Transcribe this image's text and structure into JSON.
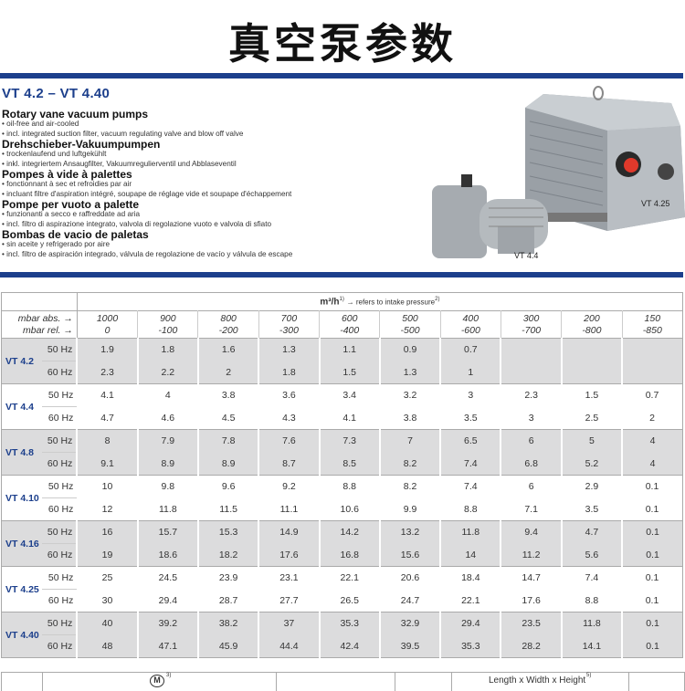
{
  "page_title": "真空泵参数",
  "heading": "VT 4.2 – VT 4.40",
  "descriptions": [
    {
      "title": "Rotary vane vacuum pumps",
      "lines": [
        "• oil-free and air-cooled",
        "• incl. integrated suction filter, vacuum regulating valve and blow off valve"
      ]
    },
    {
      "title": "Drehschieber-Vakuumpumpen",
      "lines": [
        "• trockenlaufend und luftgekühlt",
        "• inkl. integriertem Ansaugfilter, Vakuumregulierventil und Abblaseventil"
      ]
    },
    {
      "title": "Pompes à vide à palettes",
      "lines": [
        "• fonctionnant à sec et refroidies par air",
        "• incluant filtre d'aspiration intégré, soupape de réglage vide et soupape d'échappement"
      ]
    },
    {
      "title": "Pompe per vuoto a palette",
      "lines": [
        "• funzionanti a secco e raffreddate ad aria",
        "• incl. filtro di aspirazione integrato, valvola di regolazione vuoto e valvola di sfiato"
      ]
    },
    {
      "title": "Bombas de vacio de paletas",
      "lines": [
        "• sin aceite y refrigerado por aire",
        "• incl. filtro de aspiración integrado, válvula de regolazione de vacío y válvula de escape"
      ]
    }
  ],
  "photo_captions": {
    "large": "VT 4.25",
    "small": "VT 4.4"
  },
  "table": {
    "unit": "m³/h",
    "unit_note": "1)",
    "refers": "→ refers to intake pressure",
    "refers_note": "2)",
    "abs_label": "mbar abs. →",
    "rel_label": "mbar rel. →",
    "abs": [
      "1000",
      "900",
      "800",
      "700",
      "600",
      "500",
      "400",
      "300",
      "200",
      "150"
    ],
    "rel": [
      "0",
      "-100",
      "-200",
      "-300",
      "-400",
      "-500",
      "-600",
      "-700",
      "-800",
      "-850"
    ],
    "rows": [
      {
        "model": "VT 4.2",
        "hz50": "50 Hz",
        "hz60": "60 Hz",
        "v50": [
          "1.9",
          "1.8",
          "1.6",
          "1.3",
          "1.1",
          "0.9",
          "0.7",
          "",
          "",
          ""
        ],
        "v60": [
          "2.3",
          "2.2",
          "2",
          "1.8",
          "1.5",
          "1.3",
          "1",
          "",
          "",
          ""
        ]
      },
      {
        "model": "VT 4.4",
        "hz50": "50 Hz",
        "hz60": "60 Hz",
        "v50": [
          "4.1",
          "4",
          "3.8",
          "3.6",
          "3.4",
          "3.2",
          "3",
          "2.3",
          "1.5",
          "0.7"
        ],
        "v60": [
          "4.7",
          "4.6",
          "4.5",
          "4.3",
          "4.1",
          "3.8",
          "3.5",
          "3",
          "2.5",
          "2"
        ]
      },
      {
        "model": "VT 4.8",
        "hz50": "50 Hz",
        "hz60": "60 Hz",
        "v50": [
          "8",
          "7.9",
          "7.8",
          "7.6",
          "7.3",
          "7",
          "6.5",
          "6",
          "5",
          "4"
        ],
        "v60": [
          "9.1",
          "8.9",
          "8.9",
          "8.7",
          "8.5",
          "8.2",
          "7.4",
          "6.8",
          "5.2",
          "4"
        ]
      },
      {
        "model": "VT 4.10",
        "hz50": "50 Hz",
        "hz60": "60 Hz",
        "v50": [
          "10",
          "9.8",
          "9.6",
          "9.2",
          "8.8",
          "8.2",
          "7.4",
          "6",
          "2.9",
          "0.1"
        ],
        "v60": [
          "12",
          "11.8",
          "11.5",
          "11.1",
          "10.6",
          "9.9",
          "8.8",
          "7.1",
          "3.5",
          "0.1"
        ]
      },
      {
        "model": "VT 4.16",
        "hz50": "50 Hz",
        "hz60": "60 Hz",
        "v50": [
          "16",
          "15.7",
          "15.3",
          "14.9",
          "14.2",
          "13.2",
          "11.8",
          "9.4",
          "4.7",
          "0.1"
        ],
        "v60": [
          "19",
          "18.6",
          "18.2",
          "17.6",
          "16.8",
          "15.6",
          "14",
          "11.2",
          "5.6",
          "0.1"
        ]
      },
      {
        "model": "VT 4.25",
        "hz50": "50 Hz",
        "hz60": "60 Hz",
        "v50": [
          "25",
          "24.5",
          "23.9",
          "23.1",
          "22.1",
          "20.6",
          "18.4",
          "14.7",
          "7.4",
          "0.1"
        ],
        "v60": [
          "30",
          "29.4",
          "28.7",
          "27.7",
          "26.5",
          "24.7",
          "22.1",
          "17.6",
          "8.8",
          "0.1"
        ]
      },
      {
        "model": "VT 4.40",
        "hz50": "50 Hz",
        "hz60": "60 Hz",
        "v50": [
          "40",
          "39.2",
          "38.2",
          "37",
          "35.3",
          "32.9",
          "29.4",
          "23.5",
          "11.8",
          "0.1"
        ],
        "v60": [
          "48",
          "47.1",
          "45.9",
          "44.4",
          "42.4",
          "39.5",
          "35.3",
          "28.2",
          "14.1",
          "0.1"
        ]
      }
    ]
  },
  "bottom_table": {
    "motor_symbol": "M",
    "motor_note": "3)",
    "dims": "Length x Width x Height",
    "dims_note": "5)"
  },
  "colors": {
    "brand_blue": "#1c3f8c",
    "row_grey": "#dcdcdd"
  }
}
